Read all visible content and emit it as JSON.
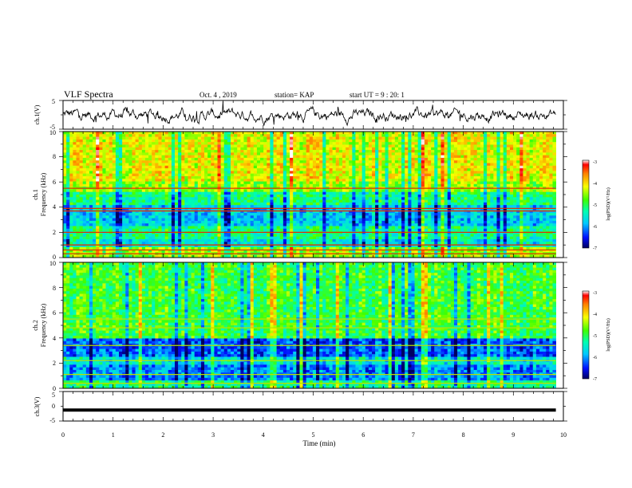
{
  "header": {
    "title": "VLF Spectra",
    "date": "Oct. 4 , 2019",
    "station": "station= KAP",
    "start": "start UT =  9 : 20: 1"
  },
  "chart_data": [
    {
      "type": "line",
      "panel": "ch1-waveform",
      "ylabel": "ch.1(V)",
      "ylim": [
        -5,
        5
      ],
      "xlim": [
        0,
        10
      ],
      "yticks": [
        "5",
        "-5"
      ],
      "color": "#000000",
      "signal_description": "noisy voltage trace fluctuating around ~0 V with amplitude up to ~±4 V, data ends at ~9.85 min"
    },
    {
      "type": "heatmap",
      "panel": "ch1-spectrogram",
      "ylabel": "ch.1\nFrequency (kHz)",
      "xlim": [
        0,
        10
      ],
      "ylim": [
        0,
        10
      ],
      "yticks": [
        "0",
        "2",
        "4",
        "6",
        "8",
        "10"
      ],
      "colorbar": {
        "label": "log(PSD)(V²/Hz)",
        "min": -7,
        "max": -3,
        "ticks": [
          "-3",
          "-4",
          "-5",
          "-6",
          "-7"
        ]
      },
      "data_end_min": 9.85,
      "dominant_bands_khz": [
        0.3,
        0.6,
        1.0,
        2.0,
        3.7,
        3.9,
        5.5
      ]
    },
    {
      "type": "heatmap",
      "panel": "ch2-spectrogram",
      "ylabel": "ch.2\nFrequency (kHz)",
      "xlim": [
        0,
        10
      ],
      "ylim": [
        0,
        10
      ],
      "yticks": [
        "0",
        "2",
        "4",
        "6",
        "8",
        "10"
      ],
      "colorbar": {
        "label": "log(PSD)(V²/Hz)",
        "min": -7,
        "max": -3,
        "ticks": [
          "-3",
          "-4",
          "-5",
          "-6",
          "-7"
        ]
      },
      "data_end_min": 9.85
    },
    {
      "type": "line",
      "panel": "ch3-waveform",
      "ylabel": "ch.3(V)",
      "ylim": [
        -5,
        5
      ],
      "xlim": [
        0,
        10
      ],
      "yticks": [
        "5",
        "0",
        "-5"
      ],
      "constant_value": -1.3,
      "data_end_min": 9.85,
      "color": "#000000"
    }
  ],
  "xaxis": {
    "label": "Time (min)",
    "ticks": [
      "0",
      "1",
      "2",
      "3",
      "4",
      "5",
      "6",
      "7",
      "8",
      "9",
      "10"
    ]
  }
}
